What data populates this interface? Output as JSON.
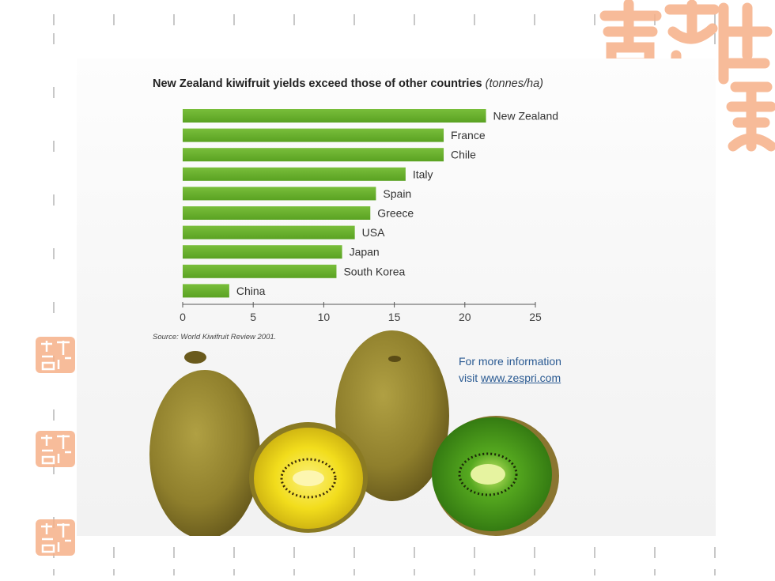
{
  "chart_data": {
    "type": "bar",
    "orientation": "horizontal",
    "title": "New Zealand kiwifruit yields exceed those of other countries",
    "unit_label": "(tonnes/ha)",
    "categories": [
      "New Zealand",
      "France",
      "Chile",
      "Italy",
      "Spain",
      "Greece",
      "USA",
      "Japan",
      "South Korea",
      "China"
    ],
    "values": [
      21.5,
      18.5,
      18.5,
      15.8,
      13.7,
      13.3,
      12.2,
      11.3,
      10.9,
      3.3
    ],
    "xlim": [
      0,
      25
    ],
    "xticks": [
      0,
      5,
      10,
      15,
      20,
      25
    ],
    "xticklabels": [
      "0",
      "5",
      "10",
      "15",
      "20",
      "25"
    ],
    "xlabel": "",
    "ylabel": "",
    "grid": false,
    "legend": "none",
    "bar_color": "#5aa222",
    "bar_color_light": "#79be3b"
  },
  "source_note": "Source: World Kiwifruit Review 2001.",
  "info": {
    "line1": "For more information",
    "line2_prefix": "visit ",
    "link_text": "www.zespri.com"
  },
  "decor": {
    "seal_color": "#f6b088",
    "dash_color": "#c8c8c8"
  }
}
